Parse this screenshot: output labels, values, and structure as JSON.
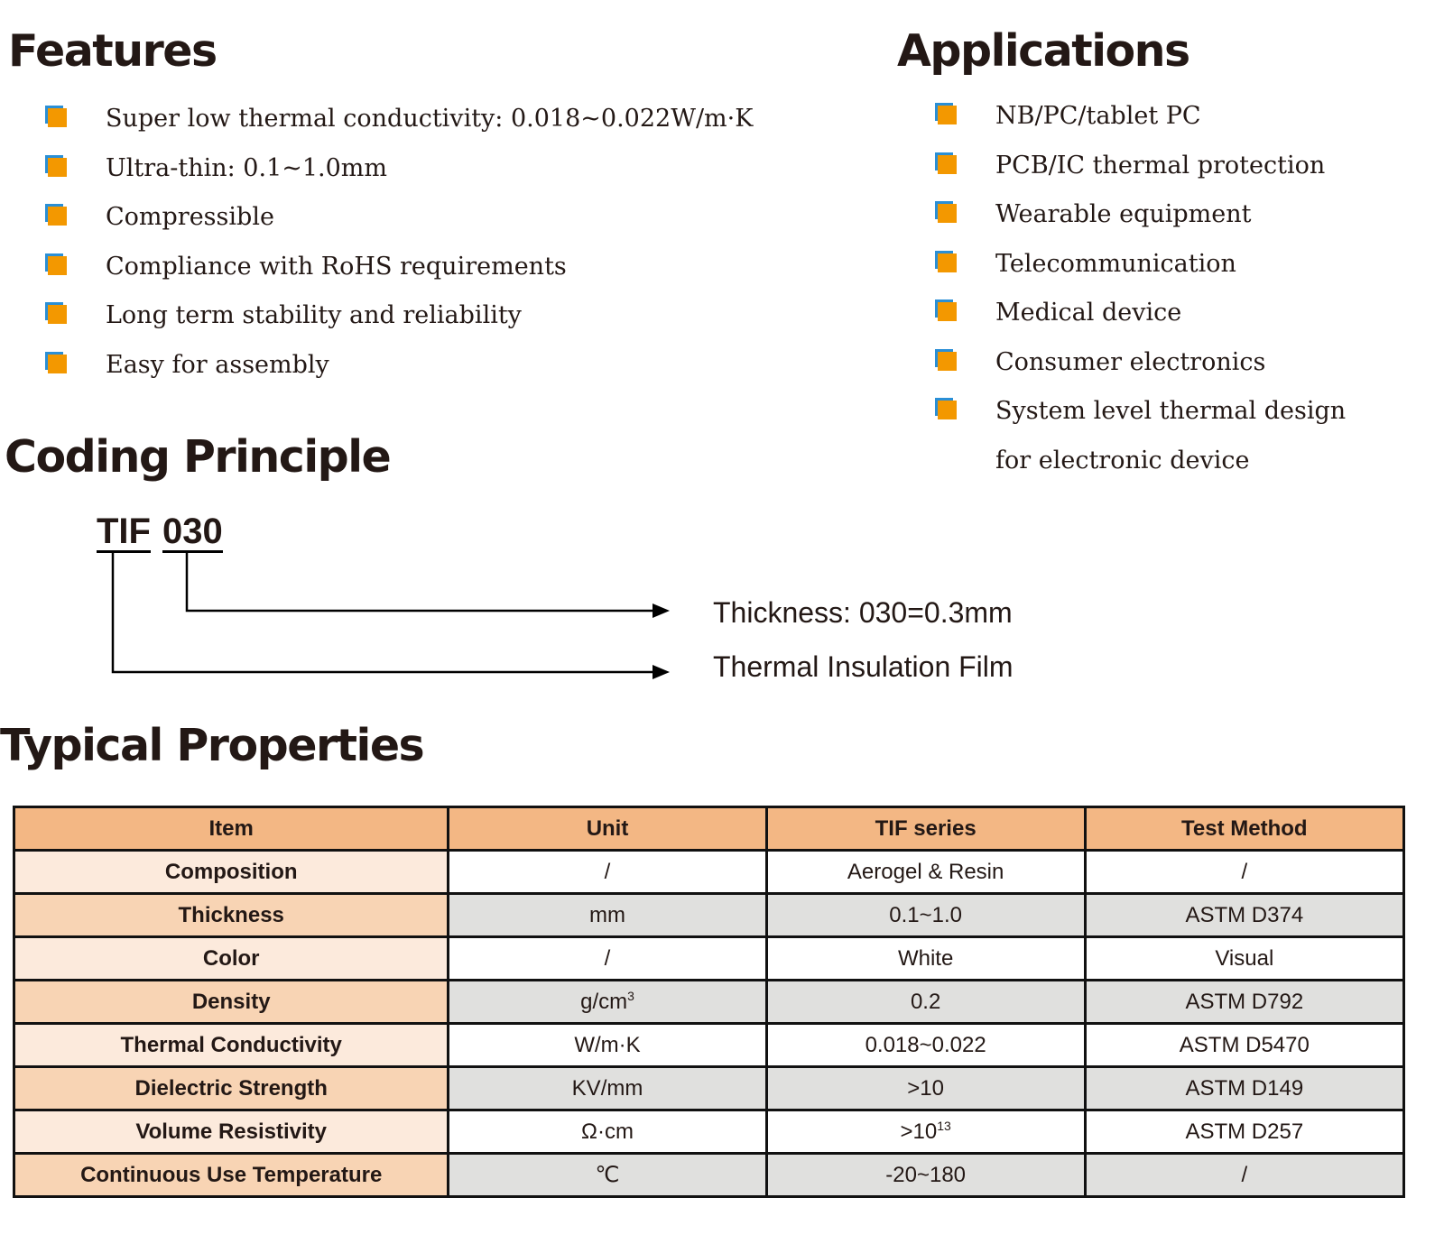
{
  "features": {
    "title": "Features",
    "items": [
      "Super low thermal conductivity: 0.018~0.022W/m·K",
      "Ultra-thin: 0.1~1.0mm",
      "Compressible",
      "Compliance with RoHS requirements",
      "Long term stability and reliability",
      "Easy for assembly"
    ]
  },
  "applications": {
    "title": "Applications",
    "items": [
      "NB/PC/tablet PC",
      "PCB/IC thermal protection",
      "Wearable equipment",
      "Telecommunication",
      "Medical device",
      "Consumer electronics",
      "System level thermal design for electronic device"
    ]
  },
  "coding": {
    "title": "Coding Principle",
    "code1": "TIF",
    "code2": "030",
    "desc_thickness": "Thickness: 030=0.3mm",
    "desc_type": "Thermal Insulation Film"
  },
  "properties": {
    "title": "Typical Properties",
    "headers": [
      "Item",
      "Unit",
      "TIF series",
      "Test Method"
    ],
    "rows": [
      {
        "item": "Composition",
        "unit": "/",
        "value": "Aerogel & Resin",
        "method": "/"
      },
      {
        "item": "Thickness",
        "unit": "mm",
        "value": "0.1~1.0",
        "method": "ASTM D374"
      },
      {
        "item": "Color",
        "unit": "/",
        "value": "White",
        "method": "Visual"
      },
      {
        "item": "Density",
        "unit": "g/cm",
        "unit_sup": "3",
        "value": "0.2",
        "method": "ASTM D792"
      },
      {
        "item": "Thermal Conductivity",
        "unit": "W/m·K",
        "value": "0.018~0.022",
        "method": "ASTM D5470"
      },
      {
        "item": "Dielectric Strength",
        "unit": "KV/mm",
        "value": ">10",
        "method": "ASTM D149"
      },
      {
        "item": "Volume Resistivity",
        "unit": "Ω·cm",
        "value": ">10",
        "value_sup": "13",
        "method": "ASTM D257"
      },
      {
        "item": "Continuous Use Temperature",
        "unit": "℃",
        "value": "-20~180",
        "method": "/"
      }
    ]
  },
  "colors": {
    "bullet_orange": "#f39800",
    "bullet_blue": "#2a8fd6",
    "header_bg": "#f3b784"
  }
}
